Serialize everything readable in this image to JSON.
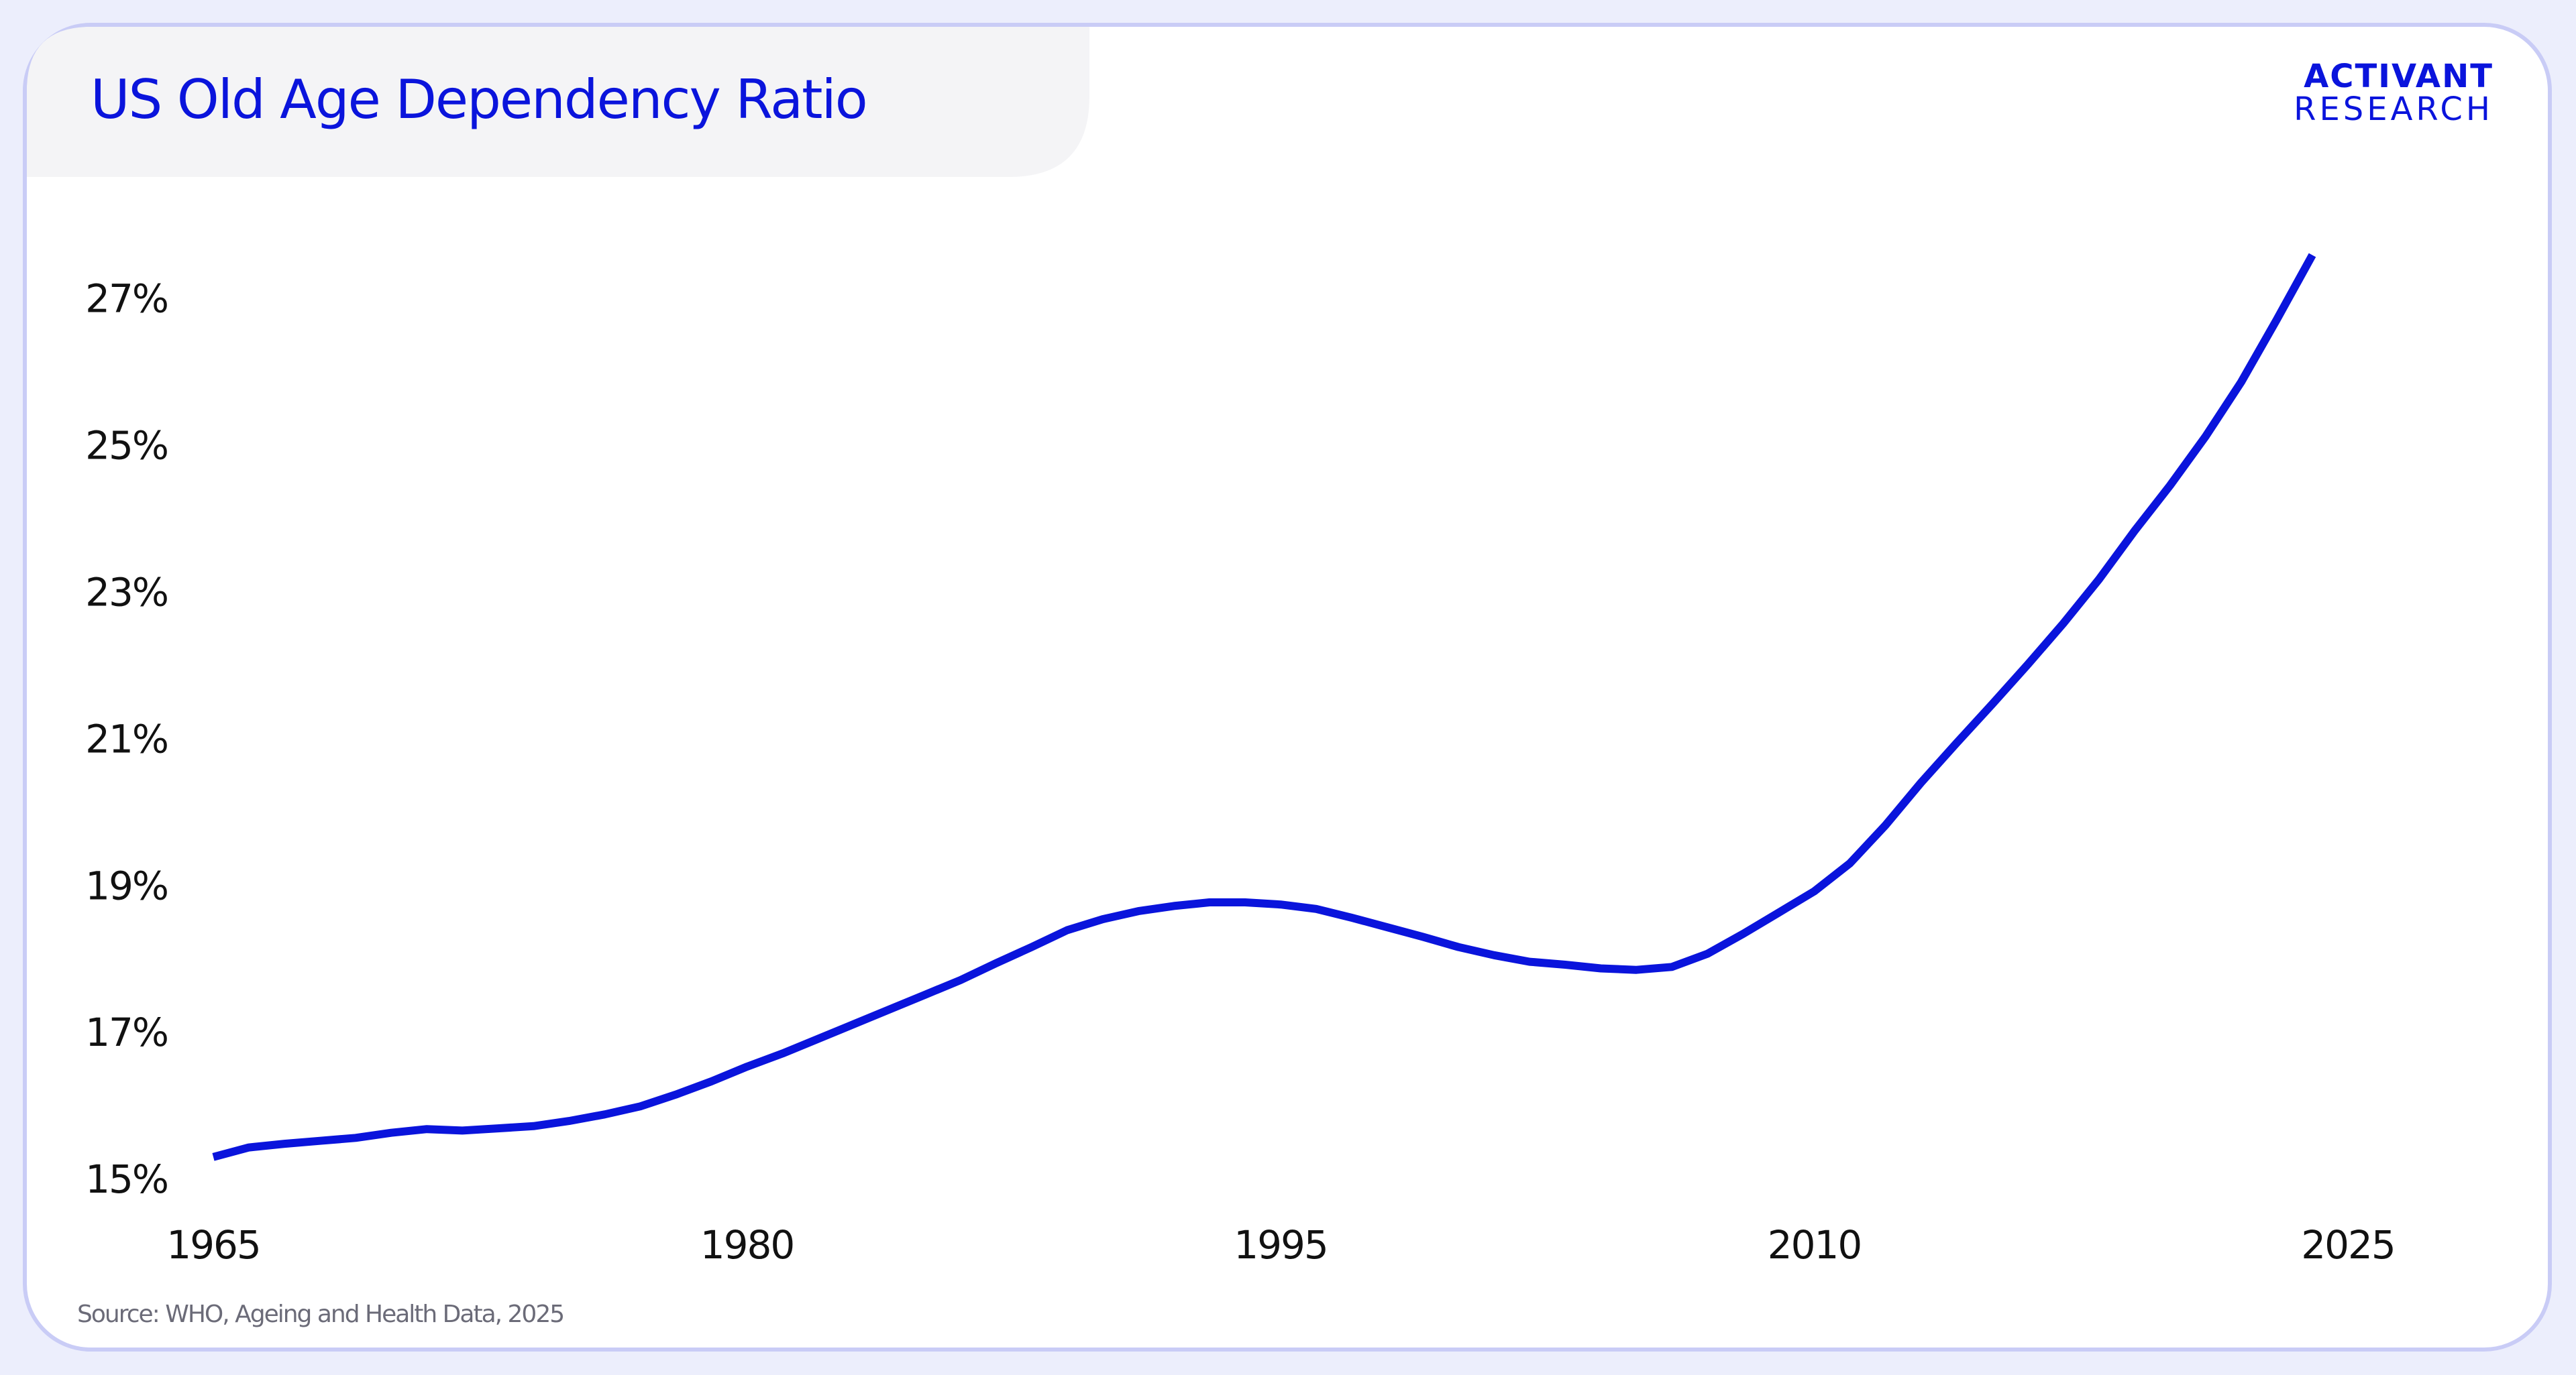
{
  "chart_data": {
    "type": "line",
    "title": "US Old Age Dependency Ratio",
    "source": "Source: WHO, Ageing and Health Data, 2025",
    "brand": [
      "ACTIVANT",
      "RESEARCH"
    ],
    "x": [
      1965,
      1966,
      1967,
      1968,
      1969,
      1970,
      1971,
      1972,
      1973,
      1974,
      1975,
      1976,
      1977,
      1978,
      1979,
      1980,
      1981,
      1982,
      1983,
      1984,
      1985,
      1986,
      1987,
      1988,
      1989,
      1990,
      1991,
      1992,
      1993,
      1994,
      1995,
      1996,
      1997,
      1998,
      1999,
      2000,
      2001,
      2002,
      2003,
      2004,
      2005,
      2006,
      2007,
      2008,
      2009,
      2010,
      2011,
      2012,
      2013,
      2014,
      2015,
      2016,
      2017,
      2018,
      2019,
      2020,
      2021,
      2022,
      2023,
      2024
    ],
    "series": [
      {
        "name": "Old age dependency ratio",
        "color": "#0a14dc",
        "values": [
          15.34,
          15.47,
          15.52,
          15.56,
          15.6,
          15.67,
          15.72,
          15.7,
          15.73,
          15.76,
          15.83,
          15.92,
          16.03,
          16.19,
          16.37,
          16.57,
          16.75,
          16.95,
          17.15,
          17.35,
          17.55,
          17.75,
          17.98,
          18.2,
          18.43,
          18.58,
          18.69,
          18.76,
          18.81,
          18.81,
          18.78,
          18.72,
          18.6,
          18.47,
          18.34,
          18.2,
          18.09,
          18.0,
          17.96,
          17.91,
          17.89,
          17.93,
          18.11,
          18.38,
          18.67,
          18.96,
          19.34,
          19.86,
          20.44,
          20.98,
          21.51,
          22.05,
          22.61,
          23.21,
          23.87,
          24.49,
          25.16,
          25.9,
          26.75,
          27.63
        ]
      }
    ],
    "xlim": [
      1965,
      2025
    ],
    "xticks": [
      1965,
      1980,
      1995,
      2010,
      2025
    ],
    "ylim": [
      15,
      28
    ],
    "yticks": [
      {
        "value": 15,
        "label": "15%"
      },
      {
        "value": 17,
        "label": "17%"
      },
      {
        "value": 19,
        "label": "19%"
      },
      {
        "value": 21,
        "label": "21%"
      },
      {
        "value": 23,
        "label": "23%"
      },
      {
        "value": 25,
        "label": "25%"
      },
      {
        "value": 27,
        "label": "27%"
      }
    ],
    "grid": false
  }
}
